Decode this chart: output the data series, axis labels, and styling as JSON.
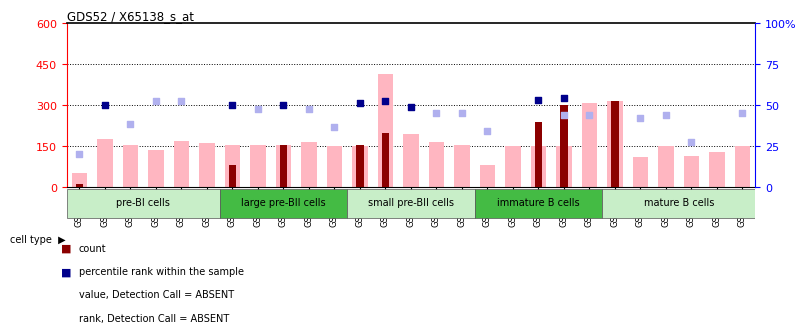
{
  "title": "GDS52 / X65138_s_at",
  "samples": [
    "GSM653",
    "GSM655",
    "GSM656",
    "GSM657",
    "GSM658",
    "GSM654",
    "GSM642",
    "GSM644",
    "GSM645",
    "GSM646",
    "GSM643",
    "GSM659",
    "GSM661",
    "GSM662",
    "GSM663",
    "GSM660",
    "GSM637",
    "GSM639",
    "GSM640",
    "GSM641",
    "GSM638",
    "GSM647",
    "GSM650",
    "GSM649",
    "GSM651",
    "GSM652",
    "GSM648"
  ],
  "cell_groups": [
    {
      "label": "pre-BI cells",
      "start": 0,
      "end": 6,
      "color": "#d4f0d4"
    },
    {
      "label": "large pre-BII cells",
      "start": 6,
      "end": 11,
      "color": "#44bb44"
    },
    {
      "label": "small pre-BII cells",
      "start": 11,
      "end": 16,
      "color": "#d4f0d4"
    },
    {
      "label": "immature B cells",
      "start": 16,
      "end": 21,
      "color": "#44bb44"
    },
    {
      "label": "mature B cells",
      "start": 21,
      "end": 27,
      "color": "#d4f0d4"
    }
  ],
  "value_absent": [
    50,
    175,
    155,
    135,
    170,
    160,
    155,
    155,
    155,
    165,
    150,
    150,
    415,
    195,
    165,
    155,
    80,
    150,
    150,
    150,
    310,
    315,
    110,
    150,
    115,
    130,
    150
  ],
  "count": [
    10,
    0,
    0,
    0,
    0,
    0,
    80,
    0,
    155,
    0,
    0,
    155,
    200,
    0,
    0,
    0,
    0,
    0,
    240,
    300,
    0,
    315,
    0,
    0,
    0,
    0,
    0
  ],
  "percentile_rank": [
    null,
    300,
    null,
    null,
    null,
    null,
    300,
    null,
    300,
    null,
    null,
    310,
    315,
    295,
    null,
    null,
    null,
    null,
    318,
    325,
    null,
    null,
    null,
    null,
    null,
    null,
    null
  ],
  "rank_absent": [
    120,
    null,
    230,
    315,
    315,
    null,
    null,
    285,
    null,
    285,
    220,
    null,
    null,
    null,
    270,
    270,
    205,
    null,
    null,
    265,
    265,
    null,
    255,
    265,
    165,
    null,
    270
  ],
  "ylim_left": [
    0,
    600
  ],
  "ylim_right": [
    0,
    100
  ],
  "bar_pink": "#ffb6c1",
  "bar_red": "#8b0000",
  "dot_blue": "#00008b",
  "dot_lightblue": "#b0b0ee",
  "cell_type_label": "cell type"
}
